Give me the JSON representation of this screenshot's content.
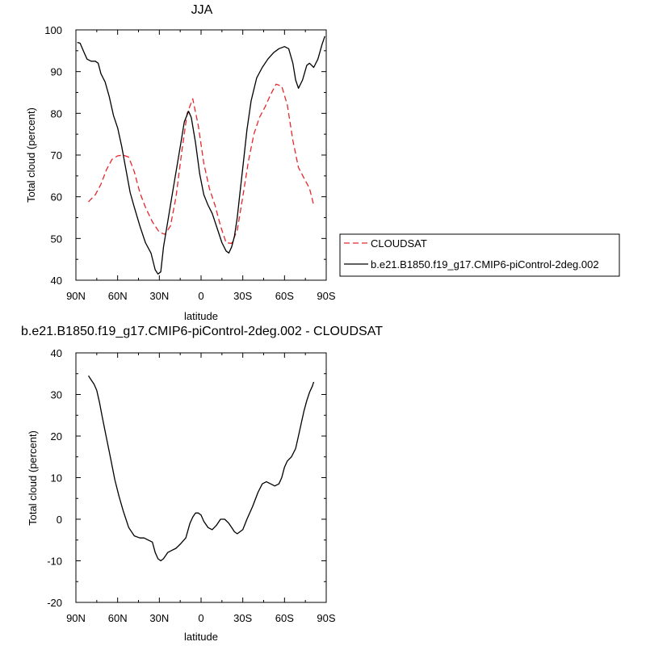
{
  "chart_data": [
    {
      "type": "line",
      "title": "JJA",
      "xlabel": "latitude",
      "ylabel": "Total cloud (percent)",
      "xlim": [
        90,
        -90
      ],
      "ylim": [
        40,
        100
      ],
      "x_ticks": [
        90,
        60,
        30,
        0,
        -30,
        -60,
        -90
      ],
      "x_tick_labels": [
        "90N",
        "60N",
        "30N",
        "0",
        "30S",
        "60S",
        "90S"
      ],
      "y_ticks": [
        40,
        50,
        60,
        70,
        80,
        90,
        100
      ],
      "y_tick_labels": [
        "40",
        "50",
        "60",
        "70",
        "80",
        "90",
        "100"
      ],
      "grid": false,
      "legend": "outside-right",
      "series": [
        {
          "name": "CLOUDSAT",
          "color": "#e8262a",
          "dash": "dashed",
          "x": [
            81,
            76,
            72,
            68,
            64,
            60,
            56,
            52,
            48,
            44,
            40,
            35,
            30,
            26,
            22,
            18,
            14,
            10,
            6,
            2,
            -2,
            -6,
            -10,
            -14,
            -18,
            -22,
            -26,
            -30,
            -34,
            -38,
            -42,
            -46,
            -50,
            -54,
            -58,
            -62,
            -66,
            -70,
            -74,
            -78,
            -81
          ],
          "y": [
            58.8,
            60.5,
            63,
            66.5,
            69,
            69.8,
            70,
            69.5,
            66,
            61,
            57.5,
            54,
            51.5,
            51,
            53,
            60,
            70.5,
            80,
            83.5,
            77,
            68,
            62,
            58,
            53,
            49,
            48.8,
            52,
            60,
            68.5,
            75,
            79,
            81.5,
            84.5,
            87,
            86.5,
            82,
            73.5,
            67,
            64.5,
            62,
            58
          ]
        },
        {
          "name": "b.e21.B1850.f19_g17.CMIP6-piControl-2deg.002",
          "color": "#000000",
          "dash": "solid",
          "x": [
            89,
            87,
            84,
            82,
            79,
            76,
            74,
            72,
            69,
            66,
            63,
            60,
            57,
            54,
            51,
            48,
            44,
            40,
            36,
            33,
            31,
            29,
            27,
            24,
            21,
            18,
            15,
            12,
            9,
            7,
            4,
            1,
            -2,
            -5,
            -8,
            -12,
            -15,
            -18,
            -20,
            -22,
            -24,
            -26,
            -28,
            -30,
            -33,
            -36,
            -40,
            -44,
            -48,
            -52,
            -56,
            -60,
            -63,
            -66,
            -68,
            -70,
            -73,
            -76,
            -78,
            -81,
            -84,
            -87,
            -89
          ],
          "y": [
            97,
            96.8,
            94.5,
            93,
            92.5,
            92.5,
            92,
            89.5,
            87.5,
            84,
            79.5,
            76.5,
            72,
            66.5,
            61,
            57.5,
            53,
            49,
            46.5,
            42.5,
            41.5,
            42,
            48,
            54,
            60,
            66,
            72,
            78,
            80.5,
            79,
            73,
            65.5,
            60.5,
            58,
            56,
            52,
            49,
            47,
            46.5,
            48,
            50.5,
            55,
            61,
            67,
            76,
            83,
            88.5,
            91,
            93,
            94.5,
            95.5,
            96,
            95.5,
            92,
            88,
            86,
            88,
            91.5,
            92,
            91,
            93,
            96.5,
            98.5
          ]
        }
      ]
    },
    {
      "type": "line",
      "title": "b.e21.B1850.f19_g17.CMIP6-piControl-2deg.002 - CLOUDSAT",
      "xlabel": "latitude",
      "ylabel": "Total cloud (percent)",
      "xlim": [
        90,
        -90
      ],
      "ylim": [
        -20,
        40
      ],
      "x_ticks": [
        90,
        60,
        30,
        0,
        -30,
        -60,
        -90
      ],
      "x_tick_labels": [
        "90N",
        "60N",
        "30N",
        "0",
        "30S",
        "60S",
        "90S"
      ],
      "y_ticks": [
        -20,
        -10,
        0,
        10,
        20,
        30,
        40
      ],
      "y_tick_labels": [
        "-20",
        "-10",
        "0",
        "10",
        "20",
        "30",
        "40"
      ],
      "grid": false,
      "series": [
        {
          "color": "#000000",
          "dash": "solid",
          "x": [
            81,
            79,
            77,
            75,
            73,
            71,
            68,
            65,
            62,
            59,
            56,
            52,
            48,
            44,
            41,
            38,
            35,
            33,
            31,
            29,
            27,
            24,
            21,
            18,
            15,
            11,
            8,
            6,
            4,
            2,
            0,
            -2,
            -5,
            -8,
            -11,
            -14,
            -17,
            -20,
            -22,
            -24,
            -26,
            -28,
            -30,
            -33,
            -37,
            -41,
            -44,
            -47,
            -50,
            -53,
            -56,
            -58,
            -60,
            -62,
            -65,
            -68,
            -70,
            -72,
            -74,
            -76,
            -78,
            -80,
            -81
          ],
          "y": [
            34.5,
            33.5,
            32.5,
            31,
            28,
            24.5,
            19.5,
            14.5,
            9.5,
            5.5,
            2,
            -2,
            -4,
            -4.5,
            -4.5,
            -5,
            -5.5,
            -8,
            -9.5,
            -10,
            -9.5,
            -8,
            -7.5,
            -7,
            -6,
            -4.5,
            -1,
            0.5,
            1.5,
            1.5,
            1,
            -0.5,
            -2,
            -2.5,
            -1.5,
            0,
            0,
            -1,
            -2,
            -3,
            -3.5,
            -3,
            -2.5,
            0,
            3,
            6.5,
            8.5,
            9,
            8.5,
            8,
            8.5,
            10,
            12.5,
            14,
            15,
            17,
            20,
            23,
            26,
            28.5,
            30.5,
            32,
            33
          ]
        }
      ]
    }
  ]
}
